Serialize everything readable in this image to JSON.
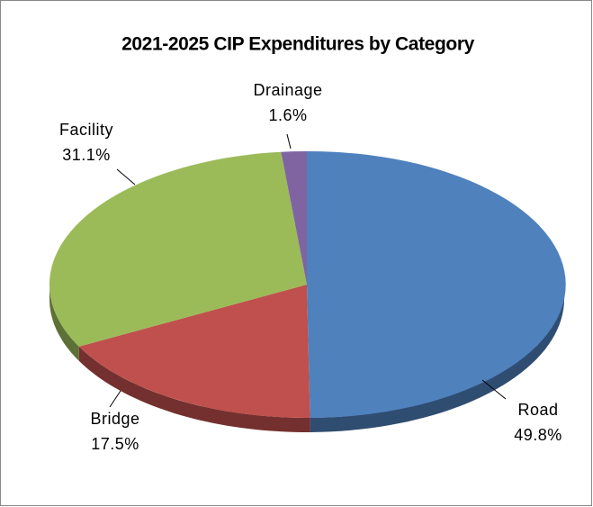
{
  "chart_data": {
    "type": "pie",
    "title": "2021-2025  CIP Expenditures by Category",
    "categories": [
      "Road",
      "Bridge",
      "Facility",
      "Drainage"
    ],
    "values": [
      49.8,
      17.5,
      31.1,
      1.6
    ],
    "value_labels": [
      "49.8%",
      "17.5%",
      "31.1%",
      "1.6%"
    ],
    "colors": [
      "#4f81bd",
      "#c0504d",
      "#9bbb59",
      "#8064a2"
    ]
  }
}
